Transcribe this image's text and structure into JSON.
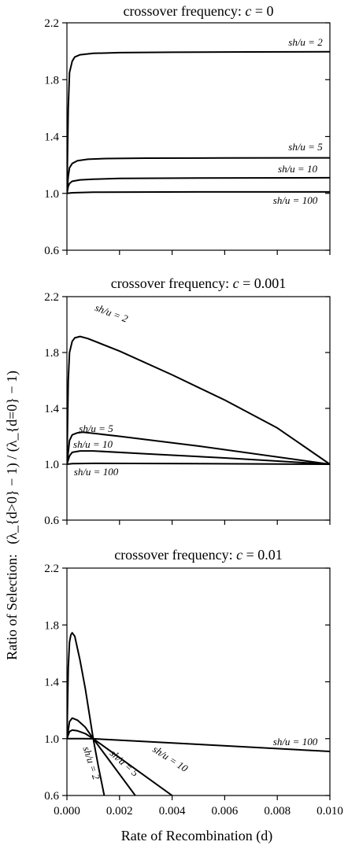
{
  "figure": {
    "ylabel_prefix": "Ratio of Selection:",
    "ylabel_expression": "(λ_{d>0} − 1) / (λ_{d=0} − 1)",
    "xlabel": "Rate of Recombination (d)"
  },
  "chart_data": [
    {
      "type": "line",
      "title": "crossover frequency: c = 0",
      "xlabel": "Rate of Recombination (d)",
      "ylabel": "Ratio of Selection: (λ_{d>0} − 1)/(λ_{d=0} − 1)",
      "xlim": [
        0,
        0.01
      ],
      "ylim": [
        0.6,
        2.2
      ],
      "yticks": [
        0.6,
        1.0,
        1.4,
        1.8,
        2.2
      ],
      "ytick_labels": [
        "0.6",
        "1.0",
        "1.4",
        "1.8",
        "2.2"
      ],
      "grid": false,
      "series": [
        {
          "name": "sh/u = 2",
          "x": [
            0,
            5e-05,
            0.0001,
            0.0002,
            0.0003,
            0.0005,
            0.001,
            0.002,
            0.004,
            0.007,
            0.01
          ],
          "y": [
            1.0,
            1.6,
            1.85,
            1.93,
            1.96,
            1.975,
            1.985,
            1.99,
            1.993,
            1.995,
            1.996
          ]
        },
        {
          "name": "sh/u = 5",
          "x": [
            0,
            5e-05,
            0.0001,
            0.0002,
            0.0004,
            0.0008,
            0.0015,
            0.003,
            0.006,
            0.01
          ],
          "y": [
            1.0,
            1.12,
            1.18,
            1.21,
            1.23,
            1.24,
            1.245,
            1.248,
            1.249,
            1.25
          ]
        },
        {
          "name": "sh/u = 10",
          "x": [
            0,
            5e-05,
            0.0001,
            0.0002,
            0.0005,
            0.001,
            0.002,
            0.005,
            0.01
          ],
          "y": [
            1.0,
            1.05,
            1.07,
            1.085,
            1.095,
            1.1,
            1.105,
            1.108,
            1.11
          ]
        },
        {
          "name": "sh/u = 100",
          "x": [
            0,
            0.0002,
            0.001,
            0.005,
            0.01
          ],
          "y": [
            1.0,
            1.004,
            1.008,
            1.01,
            1.01
          ]
        }
      ]
    },
    {
      "type": "line",
      "title": "crossover frequency: c = 0.001",
      "xlabel": "Rate of Recombination (d)",
      "ylabel": "Ratio of Selection: (λ_{d>0} − 1)/(λ_{d=0} − 1)",
      "xlim": [
        0,
        0.01
      ],
      "ylim": [
        0.6,
        2.2
      ],
      "yticks": [
        0.6,
        1.0,
        1.4,
        1.8,
        2.2
      ],
      "ytick_labels": [
        "0.6",
        "1.0",
        "1.4",
        "1.8",
        "2.2"
      ],
      "grid": false,
      "series": [
        {
          "name": "sh/u = 2",
          "x": [
            0,
            5e-05,
            0.0001,
            0.0002,
            0.0003,
            0.0005,
            0.0008,
            0.002,
            0.004,
            0.006,
            0.008,
            0.01
          ],
          "y": [
            1.0,
            1.6,
            1.8,
            1.88,
            1.905,
            1.915,
            1.9,
            1.81,
            1.64,
            1.46,
            1.26,
            1.0
          ]
        },
        {
          "name": "sh/u = 5",
          "x": [
            0,
            0.0001,
            0.0002,
            0.0004,
            0.0006,
            0.002,
            0.005,
            0.01
          ],
          "y": [
            1.0,
            1.17,
            1.21,
            1.225,
            1.23,
            1.2,
            1.13,
            1.0
          ]
        },
        {
          "name": "sh/u = 10",
          "x": [
            0,
            0.0001,
            0.0002,
            0.0005,
            0.001,
            0.003,
            0.006,
            0.01
          ],
          "y": [
            1.0,
            1.06,
            1.085,
            1.095,
            1.095,
            1.075,
            1.045,
            1.0
          ]
        },
        {
          "name": "sh/u = 100",
          "x": [
            0,
            0.0002,
            0.001,
            0.005,
            0.01
          ],
          "y": [
            1.0,
            1.004,
            1.006,
            1.004,
            1.0
          ]
        }
      ]
    },
    {
      "type": "line",
      "title": "crossover frequency: c = 0.01",
      "xlabel": "Rate of Recombination (d)",
      "ylabel": "Ratio of Selection: (λ_{d>0} − 1)/(λ_{d=0} − 1)",
      "xlim": [
        0,
        0.01
      ],
      "ylim": [
        0.6,
        2.2
      ],
      "yticks": [
        0.6,
        1.0,
        1.4,
        1.8,
        2.2
      ],
      "ytick_labels": [
        "0.6",
        "1.0",
        "1.4",
        "1.8",
        "2.2"
      ],
      "xticks": [
        0,
        0.002,
        0.004,
        0.006,
        0.008,
        0.01
      ],
      "xtick_labels": [
        "0.000",
        "0.002",
        "0.004",
        "0.006",
        "0.008",
        "0.010"
      ],
      "grid": false,
      "series": [
        {
          "name": "sh/u = 2",
          "x": [
            0,
            5e-05,
            0.0001,
            0.00015,
            0.0002,
            0.0003,
            0.0005,
            0.0007,
            0.001,
            0.0012,
            0.00142
          ],
          "y": [
            1.0,
            1.5,
            1.68,
            1.73,
            1.745,
            1.72,
            1.55,
            1.35,
            1.0,
            0.8,
            0.6
          ]
        },
        {
          "name": "sh/u = 5",
          "x": [
            0,
            0.0001,
            0.0002,
            0.0004,
            0.0007,
            0.001,
            0.0018,
            0.0026
          ],
          "y": [
            1.0,
            1.12,
            1.145,
            1.13,
            1.08,
            1.0,
            0.8,
            0.6
          ]
        },
        {
          "name": "sh/u = 10",
          "x": [
            0,
            0.0001,
            0.0002,
            0.0004,
            0.0007,
            0.001,
            0.0025,
            0.004
          ],
          "y": [
            1.0,
            1.05,
            1.06,
            1.055,
            1.035,
            1.0,
            0.8,
            0.6
          ]
        },
        {
          "name": "sh/u = 100",
          "x": [
            0,
            0.0005,
            0.001,
            0.005,
            0.01
          ],
          "y": [
            1.0,
            1.0,
            0.999,
            0.96,
            0.91
          ]
        }
      ]
    }
  ]
}
